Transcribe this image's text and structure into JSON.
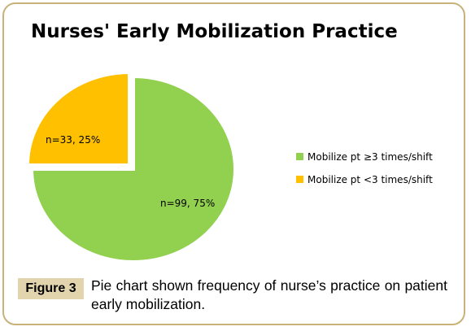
{
  "chart_data": {
    "type": "pie",
    "title": "Nurses' Early Mobilization Practice",
    "series": [
      {
        "name": "Mobilize pt ≥3 times/shift",
        "value": 99,
        "percent": 75,
        "label": "n=99, 75%",
        "color": "#92d050",
        "exploded": false
      },
      {
        "name": "Mobilize pt <3 times/shift",
        "value": 33,
        "percent": 25,
        "label": "n=33, 25%",
        "color": "#ffc000",
        "exploded": true
      }
    ],
    "legend_position": "right"
  },
  "figure": {
    "label": "Figure 3",
    "caption": "Pie chart shown frequency of nurse’s practice on patient early mobilization."
  },
  "colors": {
    "frame_border": "#c8b27a",
    "figure_badge_bg": "#e2d5ad"
  }
}
